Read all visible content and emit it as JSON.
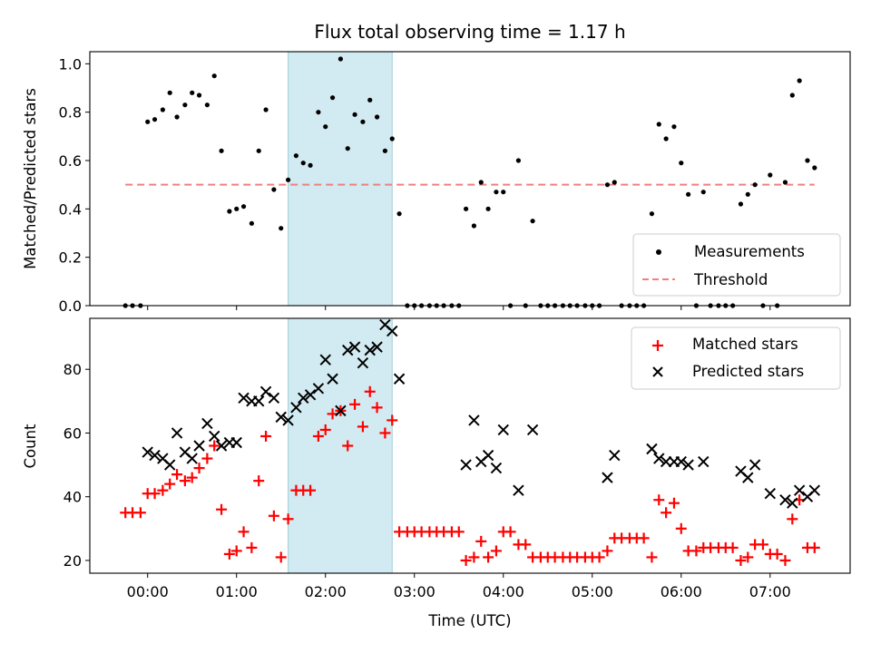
{
  "chart_data": [
    {
      "id": "top",
      "type": "scatter",
      "title": "Flux total observing time = 1.17 h",
      "xlabel": "",
      "ylabel": "Matched/Predicted stars",
      "ylim": [
        0,
        1.05
      ],
      "yticks": [
        0.0,
        0.2,
        0.4,
        0.6,
        0.8,
        1.0
      ],
      "ytick_labels": [
        "0.0",
        "0.2",
        "0.4",
        "0.6",
        "0.8",
        "1.0"
      ],
      "shaded_region_hours": [
        1.58,
        2.75
      ],
      "threshold": {
        "name": "Threshold",
        "y": 0.5,
        "x_range_hours": [
          -0.25,
          7.5
        ],
        "color": "#f08080"
      },
      "series": [
        {
          "name": "Measurements",
          "marker": "dot",
          "color": "#000000",
          "x": [
            -0.25,
            -0.17,
            -0.08,
            0.0,
            0.08,
            0.17,
            0.25,
            0.33,
            0.42,
            0.5,
            0.58,
            0.67,
            0.75,
            0.83,
            0.92,
            1.0,
            1.08,
            1.17,
            1.25,
            1.33,
            1.42,
            1.5,
            1.58,
            1.67,
            1.75,
            1.83,
            1.92,
            2.0,
            2.08,
            2.17,
            2.25,
            2.33,
            2.42,
            2.5,
            2.58,
            2.67,
            2.75,
            2.83,
            2.92,
            3.0,
            3.08,
            3.17,
            3.25,
            3.33,
            3.42,
            3.5,
            3.58,
            3.67,
            3.75,
            3.83,
            3.92,
            4.0,
            4.08,
            4.17,
            4.25,
            4.33,
            4.42,
            4.5,
            4.58,
            4.67,
            4.75,
            4.83,
            4.92,
            5.0,
            5.08,
            5.17,
            5.25,
            5.33,
            5.42,
            5.5,
            5.58,
            5.67,
            5.75,
            5.83,
            5.92,
            6.0,
            6.08,
            6.17,
            6.25,
            6.33,
            6.42,
            6.5,
            6.58,
            6.67,
            6.75,
            6.83,
            6.92,
            7.0,
            7.08,
            7.17,
            7.25,
            7.33,
            7.42,
            7.5
          ],
          "y": [
            0.0,
            0.0,
            0.0,
            0.76,
            0.77,
            0.81,
            0.88,
            0.78,
            0.83,
            0.88,
            0.87,
            0.83,
            0.95,
            0.64,
            0.39,
            0.4,
            0.41,
            0.34,
            0.64,
            0.81,
            0.48,
            0.32,
            0.52,
            0.62,
            0.59,
            0.58,
            0.8,
            0.74,
            0.86,
            1.02,
            0.65,
            0.79,
            0.76,
            0.85,
            0.78,
            0.64,
            0.69,
            0.38,
            0.0,
            0.0,
            0.0,
            0.0,
            0.0,
            0.0,
            0.0,
            0.0,
            0.4,
            0.33,
            0.51,
            0.4,
            0.47,
            0.47,
            0.0,
            0.6,
            0.0,
            0.35,
            0.0,
            0.0,
            0.0,
            0.0,
            0.0,
            0.0,
            0.0,
            0.0,
            0.0,
            0.5,
            0.51,
            0.0,
            0.0,
            0.0,
            0.0,
            0.38,
            0.75,
            0.69,
            0.74,
            0.59,
            0.46,
            0.0,
            0.47,
            0.0,
            0.0,
            0.0,
            0.0,
            0.42,
            0.46,
            0.5,
            0.0,
            0.54,
            0.0,
            0.51,
            0.87,
            0.93,
            0.6,
            0.57
          ]
        }
      ],
      "legend": {
        "placement": "bottom-right",
        "entries": [
          "Measurements",
          "Threshold"
        ]
      }
    },
    {
      "id": "bottom",
      "type": "scatter",
      "title": "",
      "xlabel": "Time (UTC)",
      "ylabel": "Count",
      "ylim": [
        16,
        96
      ],
      "yticks": [
        20,
        40,
        60,
        80
      ],
      "ytick_labels": [
        "20",
        "40",
        "60",
        "80"
      ],
      "xlim_hours": [
        -0.65,
        7.9
      ],
      "xticks_hours": [
        0,
        1,
        2,
        3,
        4,
        5,
        6,
        7
      ],
      "xtick_labels": [
        "00:00",
        "01:00",
        "02:00",
        "03:00",
        "04:00",
        "05:00",
        "06:00",
        "07:00"
      ],
      "shaded_region_hours": [
        1.58,
        2.75
      ],
      "series": [
        {
          "name": "Matched stars",
          "marker": "plus",
          "color": "#ff0000",
          "x": [
            -0.25,
            -0.17,
            -0.08,
            0.0,
            0.08,
            0.17,
            0.25,
            0.33,
            0.42,
            0.5,
            0.58,
            0.67,
            0.75,
            0.83,
            0.92,
            1.0,
            1.08,
            1.17,
            1.25,
            1.33,
            1.42,
            1.5,
            1.58,
            1.67,
            1.75,
            1.83,
            1.92,
            2.0,
            2.08,
            2.17,
            2.25,
            2.33,
            2.42,
            2.5,
            2.58,
            2.67,
            2.75,
            2.83,
            2.92,
            3.0,
            3.08,
            3.17,
            3.25,
            3.33,
            3.42,
            3.5,
            3.58,
            3.67,
            3.75,
            3.83,
            3.92,
            4.0,
            4.08,
            4.17,
            4.25,
            4.33,
            4.42,
            4.5,
            4.58,
            4.67,
            4.75,
            4.83,
            4.92,
            5.0,
            5.08,
            5.17,
            5.25,
            5.33,
            5.42,
            5.5,
            5.58,
            5.67,
            5.75,
            5.83,
            5.92,
            6.0,
            6.08,
            6.17,
            6.25,
            6.33,
            6.42,
            6.5,
            6.58,
            6.67,
            6.75,
            6.83,
            6.92,
            7.0,
            7.08,
            7.17,
            7.25,
            7.33,
            7.42,
            7.5
          ],
          "y": [
            35,
            35,
            35,
            41,
            41,
            42,
            44,
            47,
            45,
            46,
            49,
            52,
            56,
            36,
            22,
            23,
            29,
            24,
            45,
            59,
            34,
            21,
            33,
            42,
            42,
            42,
            59,
            61,
            66,
            67,
            56,
            69,
            62,
            73,
            68,
            60,
            64,
            29,
            29,
            29,
            29,
            29,
            29,
            29,
            29,
            29,
            20,
            21,
            26,
            21,
            23,
            29,
            29,
            25,
            25,
            21,
            21,
            21,
            21,
            21,
            21,
            21,
            21,
            21,
            21,
            23,
            27,
            27,
            27,
            27,
            27,
            21,
            39,
            35,
            38,
            30,
            23,
            23,
            24,
            24,
            24,
            24,
            24,
            20,
            21,
            25,
            25,
            22,
            22,
            20,
            33,
            39,
            24,
            24
          ]
        },
        {
          "name": "Predicted stars",
          "marker": "x",
          "color": "#000000",
          "x": [
            0.0,
            0.08,
            0.17,
            0.25,
            0.33,
            0.42,
            0.5,
            0.58,
            0.67,
            0.75,
            0.83,
            0.92,
            1.0,
            1.08,
            1.17,
            1.25,
            1.33,
            1.42,
            1.5,
            1.58,
            1.67,
            1.75,
            1.83,
            1.92,
            2.0,
            2.08,
            2.17,
            2.25,
            2.33,
            2.42,
            2.5,
            2.58,
            2.67,
            2.75,
            2.83,
            3.58,
            3.67,
            3.75,
            3.83,
            3.92,
            4.0,
            4.17,
            4.33,
            5.17,
            5.25,
            5.67,
            5.75,
            5.83,
            5.92,
            6.0,
            6.08,
            6.25,
            6.67,
            6.75,
            6.83,
            7.0,
            7.17,
            7.25,
            7.33,
            7.42,
            7.5
          ],
          "y": [
            54,
            53,
            52,
            50,
            60,
            54,
            52,
            56,
            63,
            59,
            56,
            57,
            57,
            71,
            70,
            70,
            73,
            71,
            65,
            64,
            68,
            71,
            72,
            74,
            83,
            77,
            67,
            86,
            87,
            82,
            86,
            87,
            94,
            92,
            77,
            50,
            64,
            51,
            53,
            49,
            61,
            42,
            61,
            46,
            53,
            55,
            52,
            51,
            51,
            51,
            50,
            51,
            48,
            46,
            50,
            41,
            39,
            38,
            42,
            40,
            42
          ]
        }
      ],
      "legend": {
        "placement": "top-right",
        "entries": [
          "Matched stars",
          "Predicted stars"
        ]
      }
    }
  ],
  "colors": {
    "shade": "#add8e6",
    "threshold": "#f08080",
    "matched": "#ff0000",
    "predicted": "#000000",
    "measurement": "#000000"
  }
}
